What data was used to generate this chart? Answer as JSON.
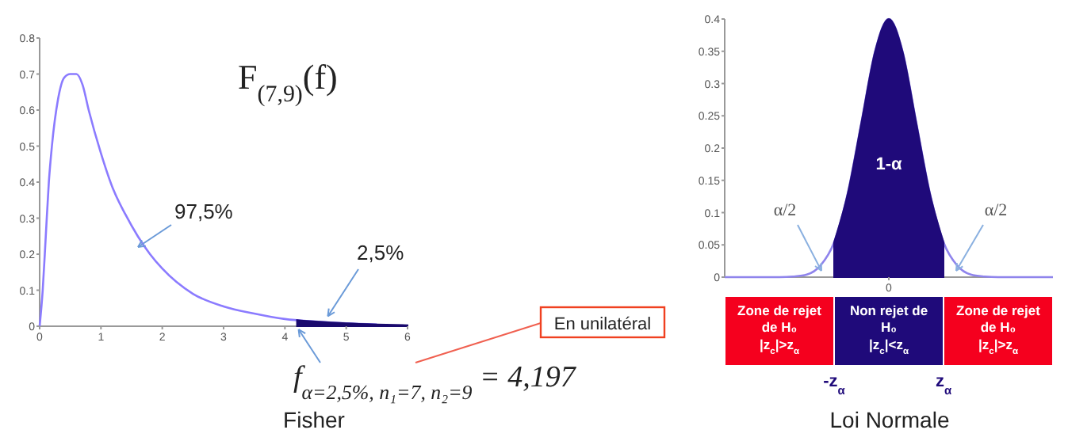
{
  "chart_data": [
    {
      "type": "line",
      "title": "F$_{(7,9)}$(f)",
      "xlabel": "Fisher",
      "xlim": [
        0,
        6
      ],
      "ylim": [
        0,
        0.8
      ],
      "xticks": [
        0,
        1,
        2,
        3,
        4,
        5,
        6
      ],
      "yticks": [
        0,
        0.1,
        0.2,
        0.3,
        0.4,
        0.5,
        0.6,
        0.7,
        0.8
      ],
      "series": [
        {
          "color": "#8b7bff",
          "x": [
            0,
            0.05,
            0.1,
            0.15,
            0.2,
            0.3,
            0.4,
            0.5,
            0.6,
            0.7,
            0.8,
            1,
            1.2,
            1.4,
            1.6,
            1.8,
            2,
            2.5,
            3,
            3.5,
            4,
            4.5,
            5,
            5.5
          ],
          "values": [
            0,
            0.1,
            0.25,
            0.4,
            0.5,
            0.63,
            0.69,
            0.7,
            0.7,
            0.67,
            0.6,
            0.48,
            0.38,
            0.31,
            0.25,
            0.2,
            0.16,
            0.09,
            0.055,
            0.035,
            0.02,
            0.013,
            0.008,
            0.005
          ]
        },
        {
          "type": "area",
          "color": "#1a0a6e",
          "x": [
            4.197,
            4.5,
            5,
            5.5,
            6
          ],
          "values": [
            0.017,
            0.013,
            0.008,
            0.005,
            0.003
          ]
        }
      ],
      "annotations": [
        "97,5%",
        {
          "text": "2,5%",
          "x": 4.7,
          "y": 0.01
        },
        {
          "text": "f$_{α=2,5%, n₁=7, n₂=9}$ = 4,197",
          "x": 4.197,
          "y": 0
        },
        "En unilatéral"
      ]
    },
    {
      "type": "line",
      "xlabel": "Loi Normale",
      "categories": [
        null,
        null,
        null,
        null,
        null,
        null,
        null,
        null,
        null,
        null,
        null,
        null,
        "0",
        null,
        null,
        null,
        null,
        null,
        null,
        null,
        null,
        null,
        null,
        null,
        null
      ],
      "ylim": [
        0,
        0.4
      ],
      "yticks": [
        0,
        0.05,
        0.1,
        0.15,
        0.2,
        0.25,
        0.3,
        0.35,
        0.4
      ],
      "series": [
        {
          "color": "#8f84ec",
          "values": [
            0,
            0,
            0,
            0,
            0,
            0.001,
            0.004,
            0.018,
            0.054,
            0.13,
            0.24,
            0.35,
            0.4,
            0.35,
            0.24,
            0.13,
            0.054,
            0.018,
            0.004,
            0.001,
            0,
            0,
            0,
            0,
            0
          ]
        },
        {
          "type": "area",
          "color": "#1f0a7a",
          "values": [
            null,
            null,
            null,
            null,
            null,
            null,
            null,
            null,
            0.054,
            0.13,
            0.24,
            0.35,
            0.4,
            0.35,
            0.24,
            0.13,
            0.054,
            null,
            null,
            null,
            null,
            null,
            null,
            null,
            null
          ]
        }
      ],
      "annotations": [
        "1-α",
        "α/2",
        "α/2",
        "-z$_{α}$",
        "z$_{α}$",
        "Zone de rejet\nde H₀\n|z$_{c}$|>z$_{α}$",
        "Non rejet de\nH₀\n|z$_{c}$|<z$_{α}$",
        "Zone de rejet\nde H₀\n|z$_{c}$|>z$_{α}$"
      ]
    }
  ]
}
